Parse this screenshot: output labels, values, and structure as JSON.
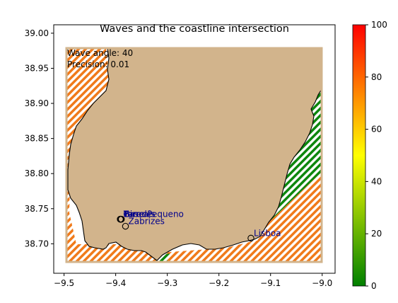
{
  "chart_data": {
    "type": "map",
    "title": "Waves and the coastline intersection",
    "xlabel": "",
    "ylabel": "",
    "xlim": [
      -9.52,
      -8.975
    ],
    "ylim": [
      38.658,
      39.012
    ],
    "xticks": [
      -9.5,
      -9.4,
      -9.3,
      -9.2,
      -9.1,
      -9.0
    ],
    "xtick_labels": [
      "−9.5",
      "−9.4",
      "−9.3",
      "−9.2",
      "−9.1",
      "−9.0"
    ],
    "yticks": [
      38.7,
      38.75,
      38.8,
      38.85,
      38.9,
      38.95,
      39.0
    ],
    "ytick_labels": [
      "38.70",
      "38.75",
      "38.80",
      "38.85",
      "38.90",
      "38.95",
      "39.00"
    ],
    "annotations": [
      "Wave angle: 40",
      "Precision: 0.01"
    ],
    "land_color": "#d2b48c",
    "colorbar": {
      "min": 0,
      "max": 100,
      "ticks": [
        0,
        20,
        40,
        60,
        80,
        100
      ],
      "tick_labels": [
        "0",
        "20",
        "40",
        "60",
        "80",
        "100"
      ],
      "colors": [
        "#008000",
        "#ffff00",
        "#ff0000"
      ]
    },
    "places": [
      {
        "name": "Cascais",
        "lon": -9.391,
        "lat": 38.735
      },
      {
        "name": "Birre",
        "lon": -9.389,
        "lat": 38.735
      },
      {
        "name": "Parede",
        "lon": -9.391,
        "lat": 38.735
      },
      {
        "name": "Torre Pequeno",
        "lon": -9.39,
        "lat": 38.735
      },
      {
        "name": "Zabrizes",
        "lon": -9.381,
        "lat": 38.725
      },
      {
        "name": "Lisboa",
        "lon": -9.138,
        "lat": 38.708
      }
    ],
    "regions": [
      {
        "name": "west-sea",
        "value": 70,
        "color": "#f07a1a"
      },
      {
        "name": "south-sea",
        "value": 70,
        "color": "#f07a1a"
      },
      {
        "name": "estuary-inlet",
        "value": 5,
        "color": "#0d870d"
      },
      {
        "name": "estuary-bay",
        "value": 5,
        "color": "#0d870d"
      },
      {
        "name": "estuary-lower",
        "value": 70,
        "color": "#f07a1a"
      }
    ]
  }
}
